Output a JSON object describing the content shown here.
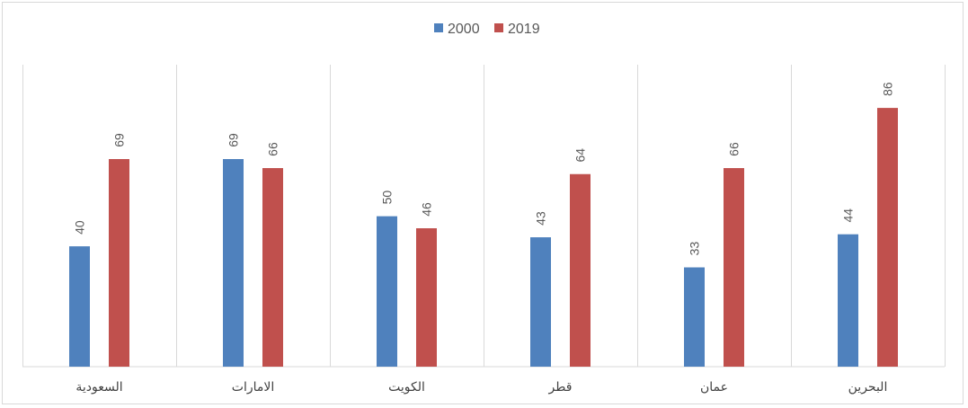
{
  "chart_data": {
    "type": "bar",
    "categories": [
      "السعودية",
      "الامارات",
      "الكويت",
      "قطر",
      "عمان",
      "البحرين"
    ],
    "series": [
      {
        "name": "2000",
        "values": [
          40,
          69,
          50,
          43,
          33,
          44
        ],
        "color": "#4f81bd"
      },
      {
        "name": "2019",
        "values": [
          69,
          66,
          46,
          64,
          66,
          86
        ],
        "color": "#c0504d"
      }
    ],
    "title": "",
    "xlabel": "",
    "ylabel": "",
    "ylim": [
      0,
      100
    ],
    "grid": "vertical category separators",
    "legend": "top-center",
    "data_labels": true
  }
}
